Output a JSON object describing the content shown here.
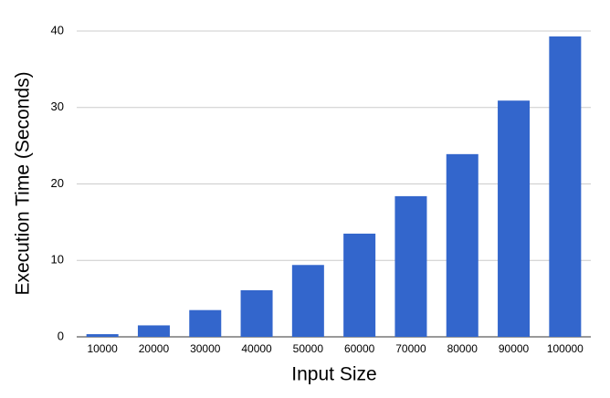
{
  "chart_data": {
    "type": "bar",
    "x_label": "Input Size",
    "y_label": "Execution Time (Seconds)",
    "categories": [
      "10000",
      "20000",
      "30000",
      "40000",
      "50000",
      "60000",
      "70000",
      "80000",
      "90000",
      "100000"
    ],
    "values": [
      0.35,
      1.5,
      3.5,
      6.1,
      9.4,
      13.5,
      18.4,
      23.9,
      30.9,
      39.3
    ],
    "color": "#3366cc",
    "ylim": [
      0,
      40
    ],
    "yticks": [
      0,
      10,
      20,
      30,
      40
    ],
    "grid": true
  }
}
